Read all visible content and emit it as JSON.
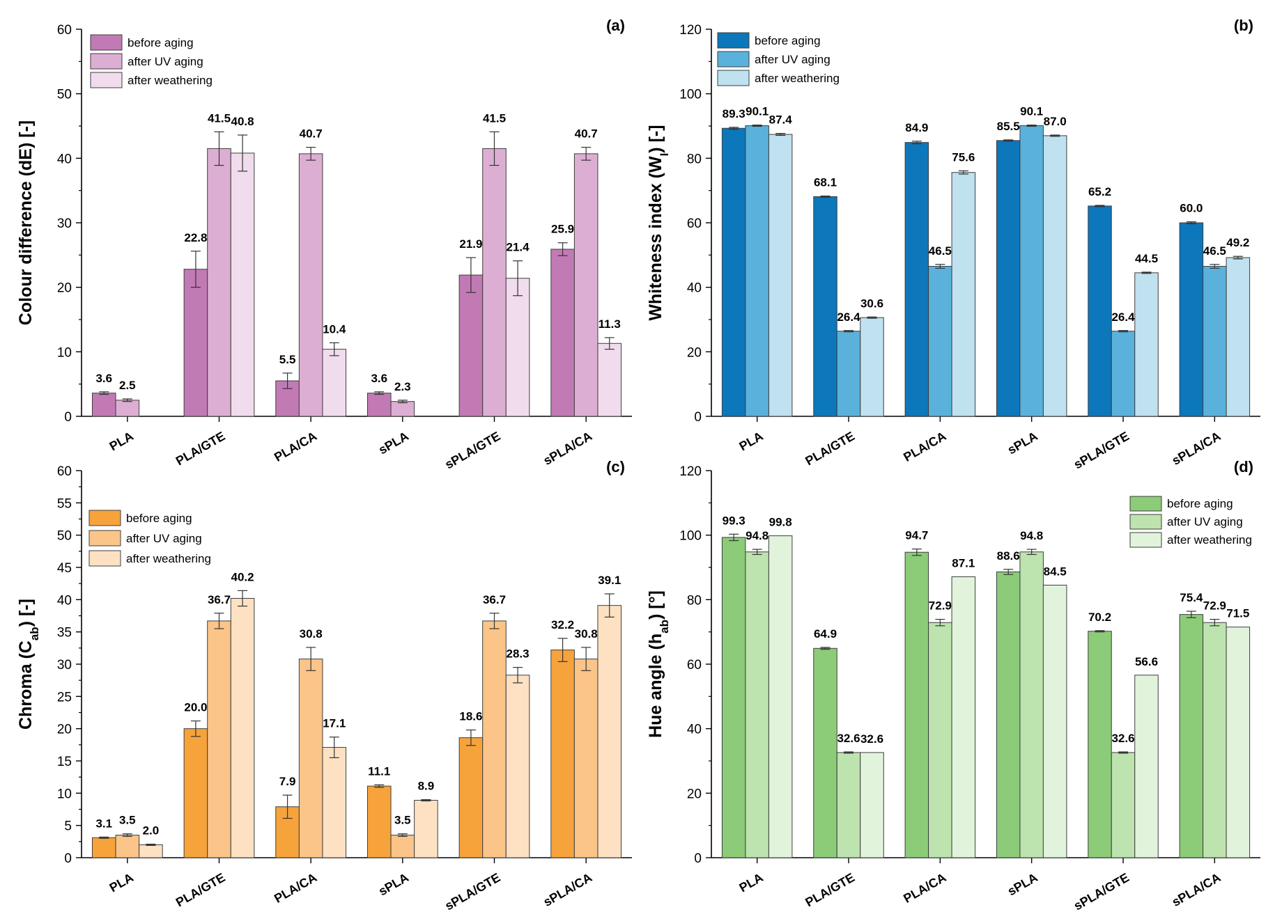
{
  "chart_data": [
    {
      "type": "bar",
      "panel_label": "(a)",
      "ylabel": "Colour difference (dE) [-]",
      "xlabel": "",
      "ylim": [
        0,
        60
      ],
      "ytick_step": 10,
      "ytick_decimals": 0,
      "label_decimals": 1,
      "legend_position": "top-left",
      "categories": [
        "PLA",
        "PLA/GTE",
        "PLA/CA",
        "sPLA",
        "sPLA/GTE",
        "sPLA/CA"
      ],
      "series": [
        {
          "name": "before aging",
          "color": "#c27ab5",
          "values": [
            3.6,
            22.8,
            5.5,
            3.6,
            21.9,
            25.9
          ],
          "errors": [
            0.2,
            2.8,
            1.2,
            0.2,
            2.7,
            1.0
          ]
        },
        {
          "name": "after UV aging",
          "color": "#ddaed3",
          "values": [
            2.5,
            41.5,
            40.7,
            2.3,
            41.5,
            40.7
          ],
          "errors": [
            0.2,
            2.6,
            1.0,
            0.2,
            2.6,
            1.0
          ]
        },
        {
          "name": "after weathering",
          "color": "#f1dced",
          "values": [
            null,
            40.8,
            10.4,
            null,
            21.4,
            11.3
          ],
          "errors": [
            null,
            2.8,
            1.0,
            null,
            2.7,
            0.9
          ]
        }
      ]
    },
    {
      "type": "bar",
      "panel_label": "(b)",
      "ylabel": "Whiteness index (W_I) [-]",
      "xlabel": "",
      "ylim": [
        0,
        120
      ],
      "ytick_step": 20,
      "ytick_decimals": 0,
      "label_decimals": 1,
      "legend_position": "top-left",
      "categories": [
        "PLA",
        "PLA/GTE",
        "PLA/CA",
        "sPLA",
        "sPLA/GTE",
        "sPLA/CA"
      ],
      "series": [
        {
          "name": "before aging",
          "color": "#0c77bb",
          "values": [
            89.3,
            68.1,
            84.9,
            85.5,
            65.2,
            60.0
          ],
          "errors": [
            0.3,
            0.2,
            0.4,
            0.2,
            0.2,
            0.3
          ]
        },
        {
          "name": "after UV aging",
          "color": "#5ab2dc",
          "values": [
            90.1,
            26.4,
            46.5,
            90.1,
            26.4,
            46.5
          ],
          "errors": [
            0.2,
            0.2,
            0.6,
            0.2,
            0.2,
            0.6
          ]
        },
        {
          "name": "after weathering",
          "color": "#bfe1f0",
          "values": [
            87.4,
            30.6,
            75.6,
            87.0,
            44.5,
            49.2
          ],
          "errors": [
            0.3,
            0.2,
            0.5,
            0.2,
            0.2,
            0.4
          ]
        }
      ]
    },
    {
      "type": "bar",
      "panel_label": "(c)",
      "ylabel": "Chroma (C_ab) [-]",
      "xlabel": "",
      "ylim": [
        0,
        60
      ],
      "ytick_step": 5,
      "ytick_decimals": 0,
      "label_decimals": 1,
      "legend_position": "top-left",
      "categories": [
        "PLA",
        "PLA/GTE",
        "PLA/CA",
        "sPLA",
        "sPLA/GTE",
        "sPLA/CA"
      ],
      "series": [
        {
          "name": "before aging",
          "color": "#f6a33c",
          "values": [
            3.1,
            20.0,
            7.9,
            11.1,
            18.6,
            32.2
          ],
          "errors": [
            0.1,
            1.2,
            1.8,
            0.2,
            1.2,
            1.8
          ]
        },
        {
          "name": "after UV aging",
          "color": "#fbc488",
          "values": [
            3.5,
            36.7,
            30.8,
            3.5,
            36.7,
            30.8
          ],
          "errors": [
            0.2,
            1.2,
            1.8,
            0.2,
            1.2,
            1.8
          ]
        },
        {
          "name": "after weathering",
          "color": "#fde1c2",
          "values": [
            2.0,
            40.2,
            17.1,
            8.9,
            28.3,
            39.1
          ],
          "errors": [
            0.1,
            1.2,
            1.6,
            0.1,
            1.2,
            1.8
          ]
        }
      ]
    },
    {
      "type": "bar",
      "panel_label": "(d)",
      "ylabel": "Hue angle (h_ab) [°]",
      "xlabel": "",
      "ylim": [
        0,
        120
      ],
      "ytick_step": 20,
      "ytick_decimals": 0,
      "label_decimals": 1,
      "legend_position": "top-right",
      "categories": [
        "PLA",
        "PLA/GTE",
        "PLA/CA",
        "sPLA",
        "sPLA/GTE",
        "sPLA/CA"
      ],
      "series": [
        {
          "name": "before aging",
          "color": "#8ccb78",
          "values": [
            99.3,
            64.9,
            94.7,
            88.6,
            70.2,
            75.4
          ],
          "errors": [
            1.0,
            0.3,
            1.0,
            0.8,
            0.2,
            1.0
          ]
        },
        {
          "name": "after UV aging",
          "color": "#bde3ae",
          "values": [
            94.8,
            32.6,
            72.9,
            94.8,
            32.6,
            72.9
          ],
          "errors": [
            0.8,
            0.2,
            1.0,
            0.8,
            0.2,
            1.0
          ]
        },
        {
          "name": "after weathering",
          "color": "#e2f3dc",
          "values": [
            99.8,
            32.6,
            87.1,
            84.5,
            56.6,
            71.5
          ],
          "errors": [
            0.0,
            0.0,
            0.0,
            0.0,
            0.0,
            0.0
          ]
        }
      ]
    }
  ]
}
